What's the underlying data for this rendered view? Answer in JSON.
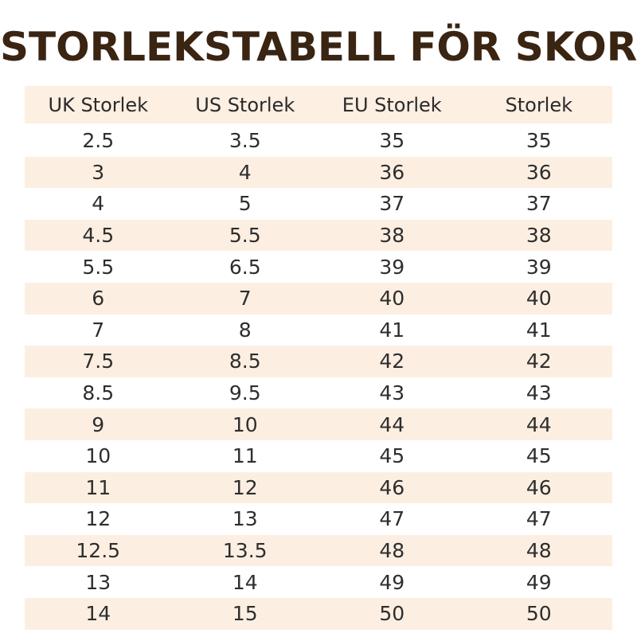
{
  "title": "STORLEKSTABELL FÖR SKOR",
  "colors": {
    "title": "#3a2412",
    "band": "#fcefe2",
    "text": "#2e2e2e"
  },
  "table": {
    "headers": [
      "UK Storlek",
      "US Storlek",
      "EU Storlek",
      "Storlek"
    ],
    "rows": [
      [
        "2.5",
        "3.5",
        "35",
        "35"
      ],
      [
        "3",
        "4",
        "36",
        "36"
      ],
      [
        "4",
        "5",
        "37",
        "37"
      ],
      [
        "4.5",
        "5.5",
        "38",
        "38"
      ],
      [
        "5.5",
        "6.5",
        "39",
        "39"
      ],
      [
        "6",
        "7",
        "40",
        "40"
      ],
      [
        "7",
        "8",
        "41",
        "41"
      ],
      [
        "7.5",
        "8.5",
        "42",
        "42"
      ],
      [
        "8.5",
        "9.5",
        "43",
        "43"
      ],
      [
        "9",
        "10",
        "44",
        "44"
      ],
      [
        "10",
        "11",
        "45",
        "45"
      ],
      [
        "11",
        "12",
        "46",
        "46"
      ],
      [
        "12",
        "13",
        "47",
        "47"
      ],
      [
        "12.5",
        "13.5",
        "48",
        "48"
      ],
      [
        "13",
        "14",
        "49",
        "49"
      ],
      [
        "14",
        "15",
        "50",
        "50"
      ]
    ]
  }
}
